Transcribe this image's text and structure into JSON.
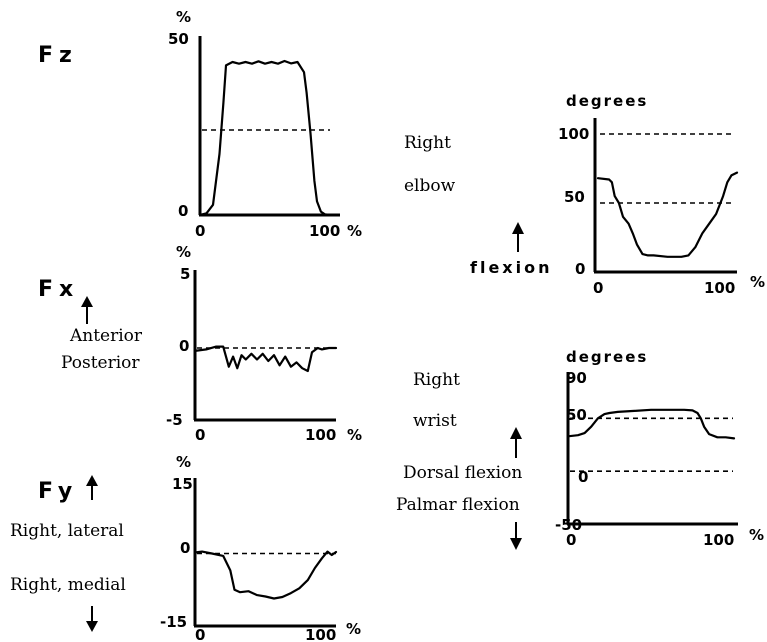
{
  "chart_data": [
    {
      "id": "fz",
      "type": "line",
      "panel_label": "Fz",
      "y_unit": "%",
      "x_unit": "%",
      "y_ticks": [
        "50",
        "0"
      ],
      "x_ticks": [
        "0",
        "100"
      ],
      "xlim": [
        0,
        100
      ],
      "ylim": [
        0,
        50
      ],
      "reference_lines": [
        25
      ],
      "side_labels": [],
      "x": [
        0,
        5,
        10,
        15,
        18,
        20,
        25,
        30,
        35,
        40,
        45,
        50,
        55,
        60,
        65,
        70,
        75,
        80,
        82,
        85,
        88,
        90,
        93,
        96,
        100
      ],
      "y": [
        0,
        0.5,
        3,
        18,
        33,
        44,
        45,
        44.5,
        45,
        44.5,
        45.2,
        44.5,
        45,
        44.5,
        45.3,
        44.6,
        45,
        42,
        36,
        24,
        10,
        4,
        1,
        0.2,
        0
      ]
    },
    {
      "id": "fx",
      "type": "line",
      "panel_label": "Fx",
      "y_unit": "%",
      "x_unit": "%",
      "y_ticks": [
        "5",
        "0",
        "-5"
      ],
      "x_ticks": [
        "0",
        "100"
      ],
      "xlim": [
        0,
        100
      ],
      "ylim": [
        -5,
        5
      ],
      "reference_lines": [
        0
      ],
      "side_labels": [
        "Anterior",
        "Posterior"
      ],
      "x": [
        0,
        8,
        15,
        20,
        24,
        27,
        30,
        33,
        36,
        40,
        44,
        48,
        52,
        56,
        60,
        64,
        68,
        72,
        76,
        80,
        83,
        87,
        90,
        95,
        100
      ],
      "y": [
        -0.2,
        -0.1,
        0.1,
        0.1,
        -1.3,
        -0.6,
        -1.4,
        -0.5,
        -0.8,
        -0.4,
        -0.8,
        -0.4,
        -0.9,
        -0.5,
        -1.2,
        -0.6,
        -1.3,
        -1.0,
        -1.4,
        -1.6,
        -0.3,
        0,
        -0.1,
        0,
        0
      ]
    },
    {
      "id": "fy",
      "type": "line",
      "panel_label": "Fy",
      "y_unit": "%",
      "x_unit": "%",
      "y_ticks": [
        "15",
        "0",
        "-15"
      ],
      "x_ticks": [
        "0",
        "100"
      ],
      "xlim": [
        0,
        100
      ],
      "ylim": [
        -15,
        15
      ],
      "reference_lines": [
        0
      ],
      "side_labels": [
        "Right, lateral",
        "Right, medial"
      ],
      "x": [
        0,
        5,
        12,
        20,
        25,
        28,
        32,
        38,
        44,
        50,
        56,
        62,
        68,
        74,
        80,
        85,
        90,
        94,
        97,
        100
      ],
      "y": [
        0.2,
        0.4,
        0,
        -0.5,
        -3.5,
        -7.5,
        -8,
        -7.8,
        -8.6,
        -8.9,
        -9.3,
        -9,
        -8.2,
        -7.2,
        -5.5,
        -3,
        -1,
        0.4,
        -0.3,
        0.3
      ]
    },
    {
      "id": "elbow",
      "type": "line",
      "panel_label": "",
      "y_unit": "degrees",
      "x_unit": "%",
      "y_ticks": [
        "100",
        "50",
        "0"
      ],
      "x_ticks": [
        "0",
        "100"
      ],
      "xlim": [
        0,
        100
      ],
      "ylim": [
        0,
        100
      ],
      "reference_lines": [
        100,
        50
      ],
      "side_labels": [
        "Right",
        "elbow",
        "flexion"
      ],
      "x": [
        0,
        8,
        10,
        12,
        15,
        18,
        22,
        25,
        28,
        32,
        36,
        40,
        50,
        60,
        65,
        70,
        75,
        80,
        85,
        90,
        93,
        96,
        100
      ],
      "y": [
        68,
        67,
        65,
        55,
        50,
        40,
        35,
        28,
        20,
        13,
        12,
        12,
        11,
        11,
        12,
        18,
        28,
        35,
        42,
        55,
        65,
        70,
        72
      ]
    },
    {
      "id": "wrist",
      "type": "line",
      "panel_label": "",
      "y_unit": "degrees",
      "x_unit": "%",
      "y_ticks": [
        "90",
        "50",
        "0",
        "-50"
      ],
      "x_ticks": [
        "0",
        "100"
      ],
      "xlim": [
        0,
        100
      ],
      "ylim": [
        -50,
        90
      ],
      "reference_lines": [
        50,
        0
      ],
      "side_labels": [
        "Right",
        "wrist",
        "Dorsal flexion",
        "Palmar flexion"
      ],
      "x": [
        0,
        6,
        10,
        14,
        18,
        22,
        25,
        30,
        40,
        50,
        60,
        70,
        75,
        78,
        80,
        82,
        85,
        90,
        95,
        100
      ],
      "y": [
        33,
        34,
        36,
        42,
        50,
        54,
        55,
        56,
        57,
        58,
        58,
        58,
        57.5,
        55,
        50,
        42,
        35,
        32,
        32,
        31
      ]
    }
  ]
}
